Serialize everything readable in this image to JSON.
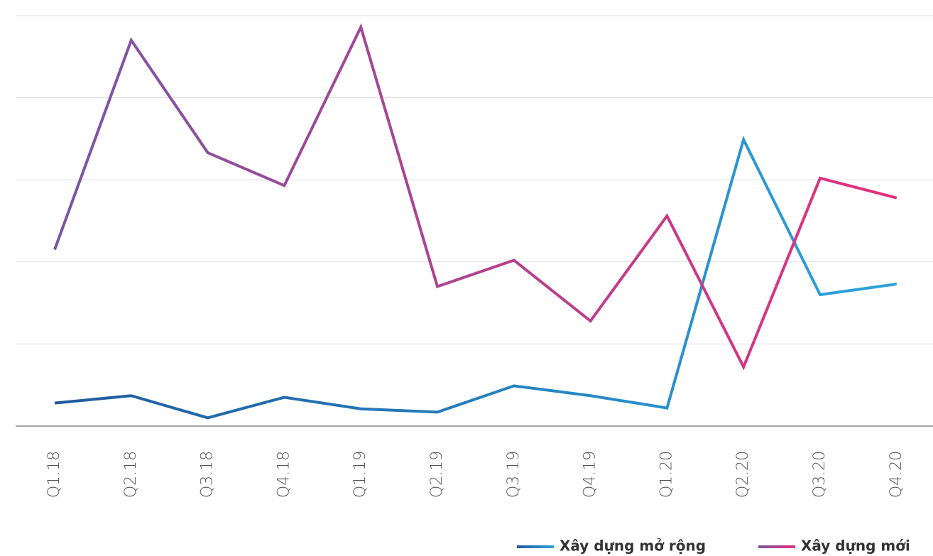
{
  "chart_data": {
    "type": "line",
    "categories": [
      "Q1.18",
      "Q2.18",
      "Q3.18",
      "Q4.18",
      "Q1.19",
      "Q2.19",
      "Q3.19",
      "Q4.19",
      "Q1.20",
      "Q2.20",
      "Q3.20",
      "Q4.20"
    ],
    "series": [
      {
        "name": "Xây dựng mở rộng",
        "color": [
          "#1f5a9e",
          "#2ea3dc"
        ],
        "values": [
          0.28,
          0.37,
          0.1,
          0.35,
          0.21,
          0.17,
          0.49,
          0.37,
          0.22,
          3.49,
          1.6,
          1.73
        ]
      },
      {
        "name": "Xây dựng mới",
        "color": [
          "#7b55a6",
          "#e62e7c"
        ],
        "values": [
          2.15,
          4.7,
          3.33,
          2.93,
          4.86,
          1.7,
          2.02,
          1.28,
          2.56,
          0.72,
          3.02,
          2.78
        ]
      }
    ],
    "ylim": [
      0,
      5
    ],
    "yticks": [
      0,
      1,
      2,
      3,
      4,
      5
    ],
    "grid": true,
    "legend": "bottom"
  }
}
